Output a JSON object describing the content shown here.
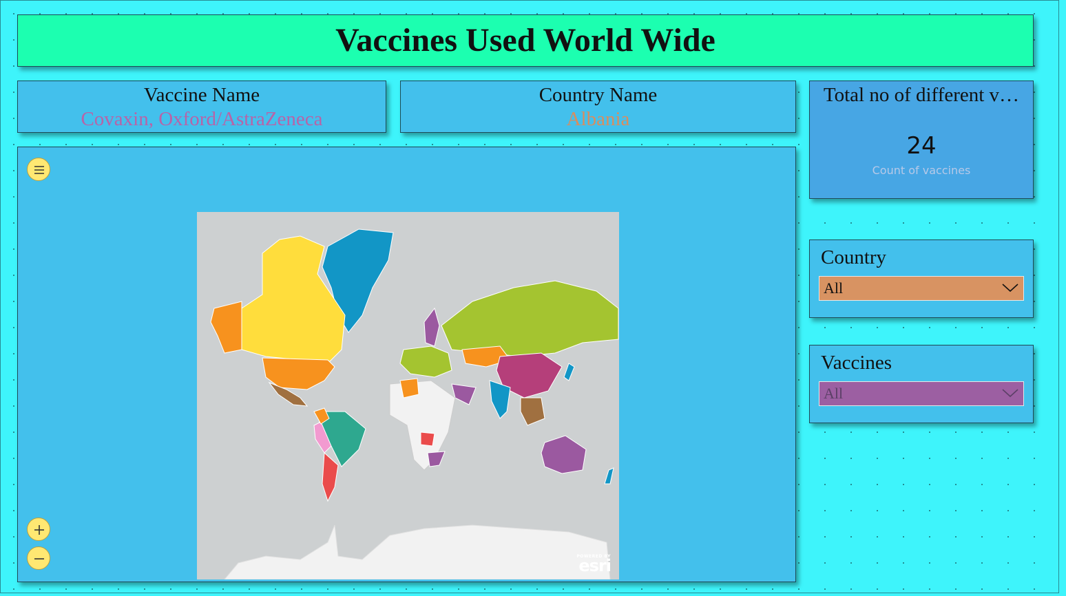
{
  "title": "Vaccines Used World Wide",
  "vaccine_card": {
    "label": "Vaccine Name",
    "value": "Covaxin, Oxford/AstraZeneca"
  },
  "country_card": {
    "label": "Country Name",
    "value": "Albania"
  },
  "kpi": {
    "label": "Total no of different v…",
    "value": "24",
    "sublabel": "Count of vaccines"
  },
  "country_slicer": {
    "label": "Country",
    "selected": "All"
  },
  "vaccine_slicer": {
    "label": "Vaccines",
    "selected": "All"
  },
  "map": {
    "attribution_top": "POWERED BY",
    "attribution_logo": "esri",
    "controls": [
      "menu-icon",
      "zoom-in-icon",
      "zoom-out-icon"
    ]
  },
  "colors": {
    "title_bg": "#1cffb0",
    "background": "#3ef4fb",
    "card_bg": "#43c0ec",
    "kpi_bg": "#47a6e4",
    "country_dropdown": "#d89362",
    "vaccine_dropdown": "#9c5fa2"
  }
}
